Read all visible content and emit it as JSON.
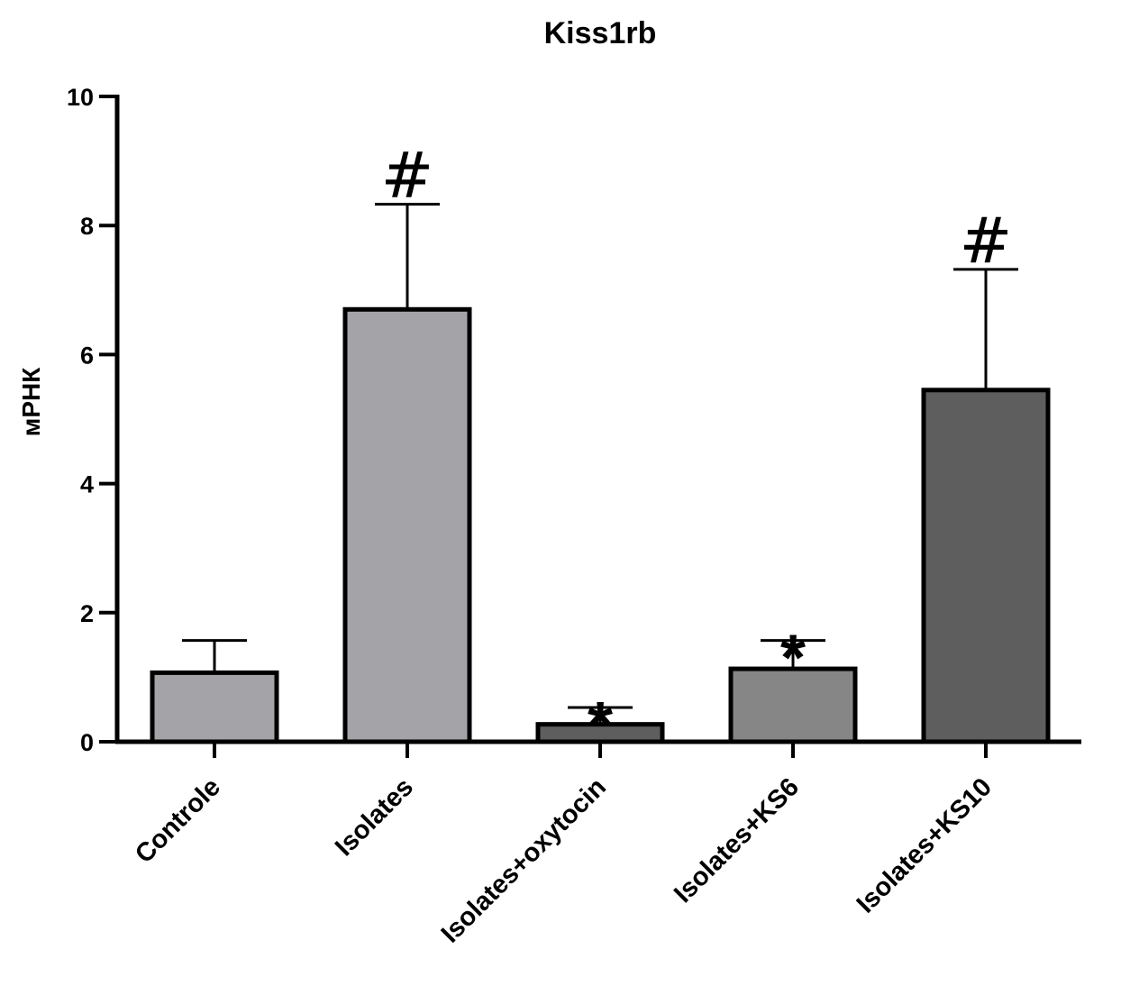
{
  "chart_data": {
    "type": "bar",
    "title": "Kiss1rb",
    "ylabel": "мРНК",
    "xlabel": "",
    "ylim": [
      0,
      10
    ],
    "yticks": [
      0,
      2,
      4,
      6,
      8,
      10
    ],
    "categories": [
      "Controle",
      "Isolates",
      "Isolates+oxytocin",
      "Isolates+KS6",
      "Isolates+KS10"
    ],
    "values": [
      1.07,
      6.7,
      0.27,
      1.13,
      5.45
    ],
    "error_upper": [
      0.5,
      1.63,
      0.26,
      0.44,
      1.87
    ],
    "annotations": [
      "",
      "#",
      "*",
      "*",
      "#"
    ],
    "bar_colors": [
      "#a4a4a8",
      "#a4a4a8",
      "#5e5e5e",
      "#868686",
      "#5e5e5e"
    ],
    "grid": false
  }
}
